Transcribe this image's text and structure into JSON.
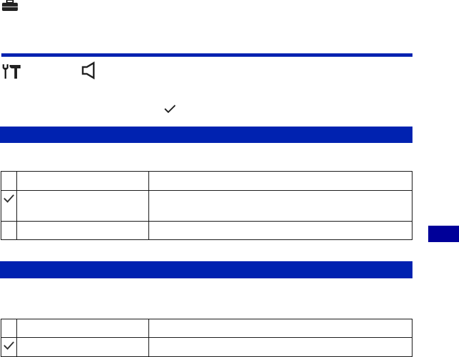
{
  "colors": {
    "accent": "#0022b0",
    "side_tab": "#000099"
  },
  "icons": [
    "briefcase-icon",
    "tools-icon",
    "speaker-icon",
    "check-icon"
  ],
  "table1": {
    "rows": [
      {
        "default": false
      },
      {
        "default": true
      },
      {
        "default": false
      }
    ]
  },
  "table2": {
    "rows": [
      {
        "default": false
      },
      {
        "default": true
      }
    ]
  }
}
